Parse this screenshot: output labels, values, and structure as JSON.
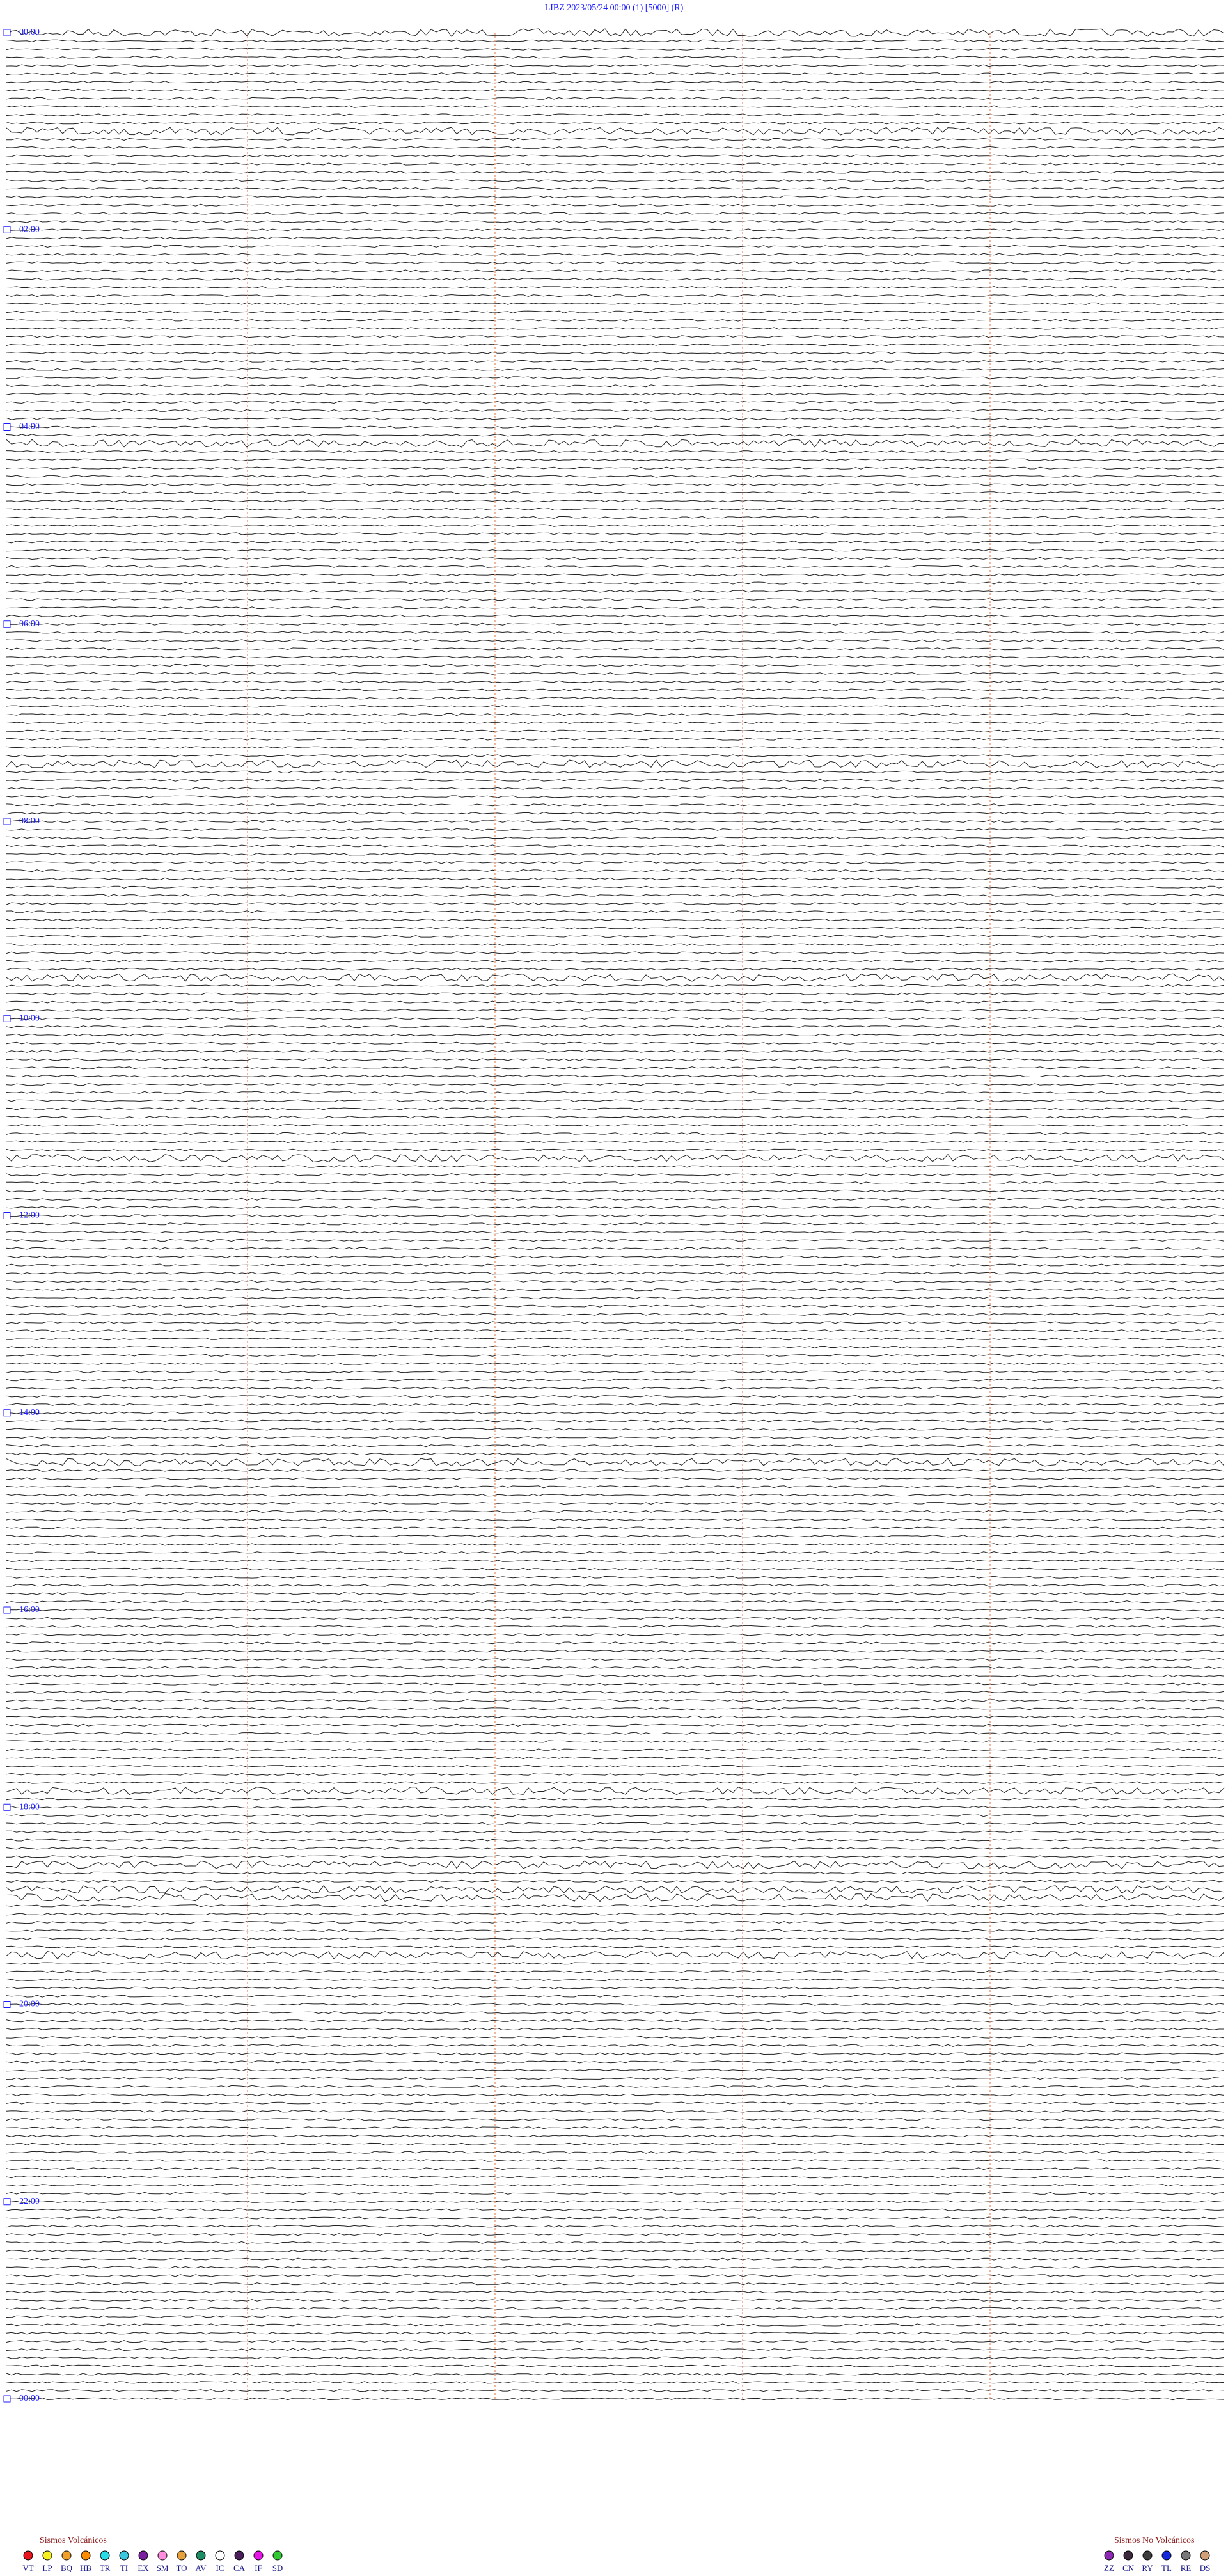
{
  "header": {
    "title": "LIBZ    2023/05/24 00:00    (1)    [5000]   (R)"
  },
  "time_labels": [
    "00:00",
    "02:00",
    "04:00",
    "06:00",
    "08:00",
    "10:00",
    "12:00",
    "14:00",
    "16:00",
    "18:00",
    "20:00",
    "22:00",
    "00:00"
  ],
  "legend_volcanic": {
    "title": "Sismos Volcánicos",
    "items": [
      {
        "code": "VT",
        "color": "#e8141c"
      },
      {
        "code": "LP",
        "color": "#f5f01e"
      },
      {
        "code": "BQ",
        "color": "#f0a028"
      },
      {
        "code": "HB",
        "color": "#ff8c00"
      },
      {
        "code": "TR",
        "color": "#28dce6"
      },
      {
        "code": "TI",
        "color": "#3cc8dc"
      },
      {
        "code": "EX",
        "color": "#7a1fa0"
      },
      {
        "code": "SM",
        "color": "#ff8cdc"
      },
      {
        "code": "TO",
        "color": "#e6a03c"
      },
      {
        "code": "AV",
        "color": "#1e8c64"
      },
      {
        "code": "IC",
        "color": "#ffffff"
      },
      {
        "code": "CA",
        "color": "#4a1e5a"
      },
      {
        "code": "IF",
        "color": "#e614e6"
      },
      {
        "code": "SD",
        "color": "#32c832"
      }
    ]
  },
  "legend_non_volcanic": {
    "title": "Sismos No Volcánicos",
    "items": [
      {
        "code": "ZZ",
        "color": "#8c28b4"
      },
      {
        "code": "CN",
        "color": "#3c283c"
      },
      {
        "code": "RY",
        "color": "#3c3c3c"
      },
      {
        "code": "TL",
        "color": "#1428dc"
      },
      {
        "code": "RE",
        "color": "#787878"
      },
      {
        "code": "DS",
        "color": "#d2a078"
      }
    ]
  }
}
